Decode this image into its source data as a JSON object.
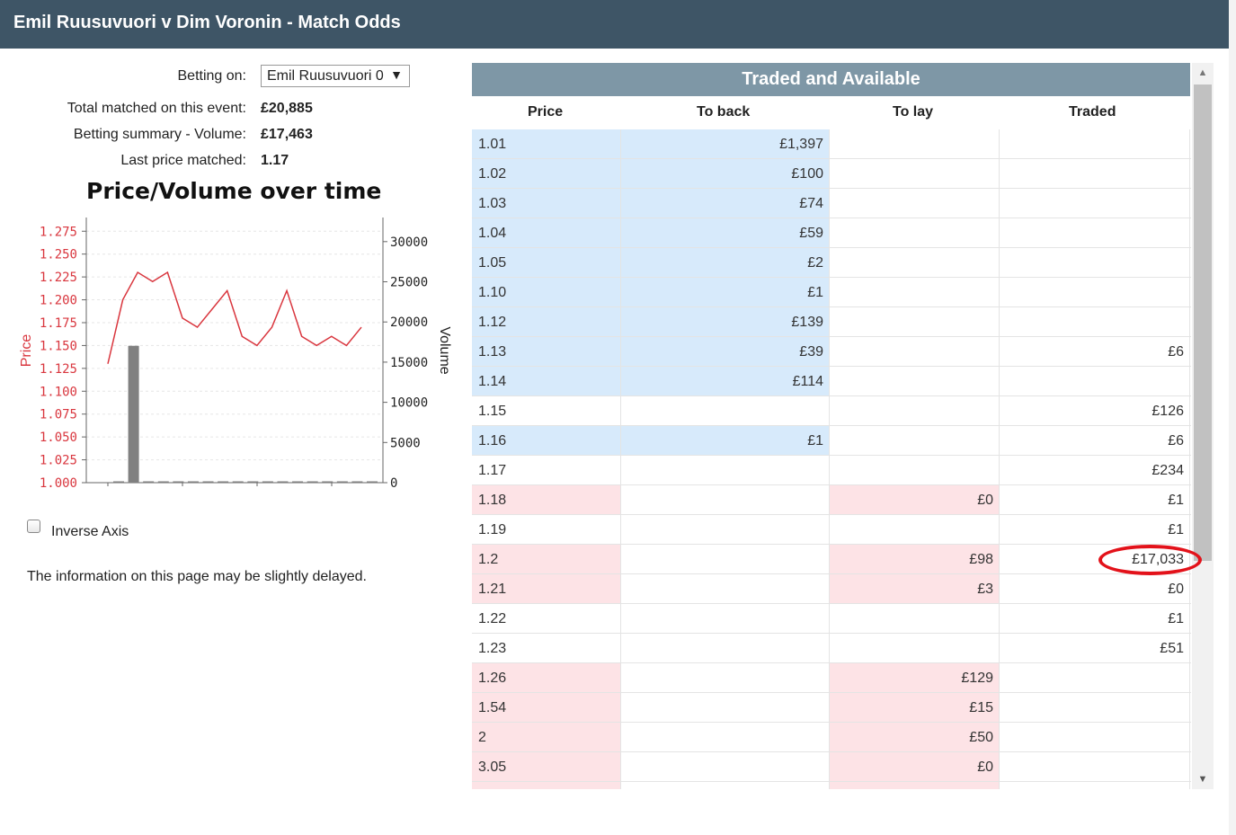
{
  "window": {
    "title": "Emil Ruusuvuori v Dim Voronin - Match Odds"
  },
  "summary": {
    "betting_on_label": "Betting on:",
    "betting_on_value": "Emil Ruusuvuori 0",
    "total_matched_label": "Total matched on this event:",
    "total_matched_value": "£20,885",
    "volume_label": "Betting summary - Volume:",
    "volume_value": "£17,463",
    "last_price_label": "Last price matched:",
    "last_price_value": "1.17"
  },
  "chart_data": {
    "type": "line",
    "title": "Price/Volume over time",
    "ylabel": "Price",
    "y2label": "Volume",
    "ylim": [
      1.0,
      1.29
    ],
    "y2lim": [
      0,
      33000
    ],
    "y_ticks": [
      "1.000",
      "1.025",
      "1.050",
      "1.075",
      "1.100",
      "1.125",
      "1.150",
      "1.175",
      "1.200",
      "1.225",
      "1.250",
      "1.275"
    ],
    "y2_ticks": [
      "0",
      "5000",
      "10000",
      "15000",
      "20000",
      "25000",
      "30000"
    ],
    "price_series": [
      1.13,
      1.2,
      1.23,
      1.22,
      1.23,
      1.18,
      1.17,
      1.19,
      1.21,
      1.16,
      1.15,
      1.17,
      1.21,
      1.16,
      1.15,
      1.16,
      1.15,
      1.17
    ],
    "volume_series": [
      0,
      17033,
      0,
      0,
      0,
      0,
      0,
      0,
      0,
      0,
      0,
      0,
      0,
      0,
      0,
      0,
      0,
      0
    ],
    "grid": true,
    "colors": {
      "price": "#d9363e",
      "volume": "#808080"
    }
  },
  "controls": {
    "inverse_axis_label": "Inverse Axis",
    "inverse_axis_checked": false
  },
  "notice": "The information on this page may be slightly delayed.",
  "table": {
    "title": "Traded and Available",
    "headers": {
      "price": "Price",
      "to_back": "To back",
      "to_lay": "To lay",
      "traded": "Traded"
    },
    "rows": [
      {
        "price": "1.01",
        "back": "£1,397",
        "lay": "",
        "traded": "",
        "side": "back"
      },
      {
        "price": "1.02",
        "back": "£100",
        "lay": "",
        "traded": "",
        "side": "back"
      },
      {
        "price": "1.03",
        "back": "£74",
        "lay": "",
        "traded": "",
        "side": "back"
      },
      {
        "price": "1.04",
        "back": "£59",
        "lay": "",
        "traded": "",
        "side": "back"
      },
      {
        "price": "1.05",
        "back": "£2",
        "lay": "",
        "traded": "",
        "side": "back"
      },
      {
        "price": "1.10",
        "back": "£1",
        "lay": "",
        "traded": "",
        "side": "back"
      },
      {
        "price": "1.12",
        "back": "£139",
        "lay": "",
        "traded": "",
        "side": "back"
      },
      {
        "price": "1.13",
        "back": "£39",
        "lay": "",
        "traded": "£6",
        "side": "back"
      },
      {
        "price": "1.14",
        "back": "£114",
        "lay": "",
        "traded": "",
        "side": "back"
      },
      {
        "price": "1.15",
        "back": "",
        "lay": "",
        "traded": "£126",
        "side": "none"
      },
      {
        "price": "1.16",
        "back": "£1",
        "lay": "",
        "traded": "£6",
        "side": "back"
      },
      {
        "price": "1.17",
        "back": "",
        "lay": "",
        "traded": "£234",
        "side": "none"
      },
      {
        "price": "1.18",
        "back": "",
        "lay": "£0",
        "traded": "£1",
        "side": "lay"
      },
      {
        "price": "1.19",
        "back": "",
        "lay": "",
        "traded": "£1",
        "side": "none"
      },
      {
        "price": "1.2",
        "back": "",
        "lay": "£98",
        "traded": "£17,033",
        "side": "lay"
      },
      {
        "price": "1.21",
        "back": "",
        "lay": "£3",
        "traded": "£0",
        "side": "lay"
      },
      {
        "price": "1.22",
        "back": "",
        "lay": "",
        "traded": "£1",
        "side": "none"
      },
      {
        "price": "1.23",
        "back": "",
        "lay": "",
        "traded": "£51",
        "side": "none"
      },
      {
        "price": "1.26",
        "back": "",
        "lay": "£129",
        "traded": "",
        "side": "lay"
      },
      {
        "price": "1.54",
        "back": "",
        "lay": "£15",
        "traded": "",
        "side": "lay"
      },
      {
        "price": "2",
        "back": "",
        "lay": "£50",
        "traded": "",
        "side": "lay"
      },
      {
        "price": "3.05",
        "back": "",
        "lay": "£0",
        "traded": "",
        "side": "lay"
      },
      {
        "price": "",
        "back": "",
        "lay": "",
        "traded": "",
        "side": "lay"
      }
    ]
  },
  "colors": {
    "header_bg": "#3e5566",
    "panel_head_bg": "#7e97a6",
    "back_bg": "#d7eafb",
    "lay_bg": "#fde3e6",
    "highlight": "#e3121a"
  }
}
